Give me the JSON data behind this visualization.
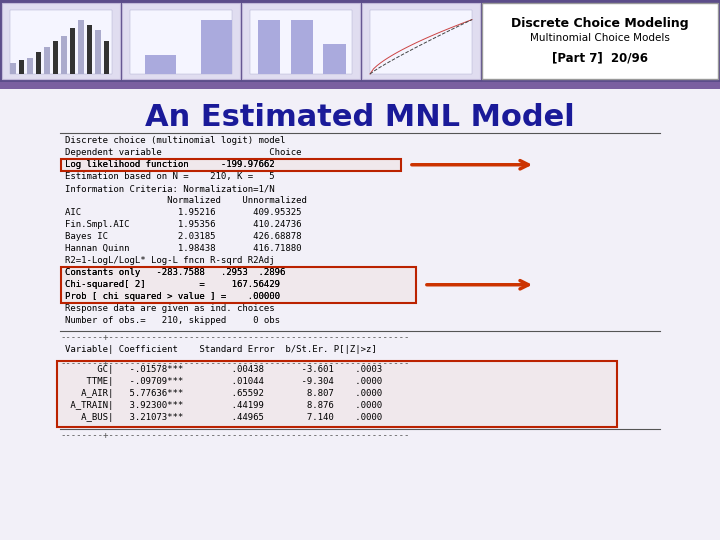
{
  "title": "An Estimated MNL Model",
  "title_color": "#1a1a99",
  "title_fontsize": 22,
  "bg_color": "#f2f0f8",
  "banner_color": "#5c4d8a",
  "banner_stripe_color": "#7a5fa0",
  "text_block": [
    "Discrete choice (multinomial logit) model",
    "Dependent variable                    Choice",
    "Log likelihood function      -199.97662",
    "Estimation based on N =    210, K =   5",
    "Information Criteria: Normalization=1/N",
    "                   Normalized    Unnormalized",
    "AIC                  1.95216       409.95325",
    "Fin.Smpl.AIC         1.95356       410.24736",
    "Bayes IC             2.03185       426.68878",
    "Hannan Quinn         1.98438       416.71880",
    "R2=1-LogL/LogL* Log-L fncn R-sqrd R2Adj",
    "Constants only   -283.7588   .2953  .2896",
    "Chi-squared[ 2]          =     167.56429",
    "Prob [ chi squared > value ] =    .00000",
    "Response data are given as ind. choices",
    "Number of obs.=   210, skipped     0 obs"
  ],
  "divider_text": "--------+--------------------------------------------------------",
  "var_header": "Variable| Coefficient    Standard Error  b/St.Er. P[|Z|>z]",
  "table_rows": [
    "      GC|   -.01578***         .00438       -3.601    .0003",
    "    TTME|   -.09709***         .01044       -9.304    .0000",
    "   A_AIR|   5.77636***         .65592        8.807    .0000",
    " A_TRAIN|   3.92300***         .44199        8.876    .0000",
    "   A_BUS|   3.21073***         .44965        7.140    .0000"
  ],
  "header_text_lines": [
    "Discrete Choice Modeling",
    "Multinomial Choice Models",
    "[Part 7]  20/96"
  ],
  "box_edge_color": "#bb2200",
  "box_fill_color": "#f0e8ec",
  "arrow_color": "#cc3300",
  "mono_fontsize": 6.5
}
